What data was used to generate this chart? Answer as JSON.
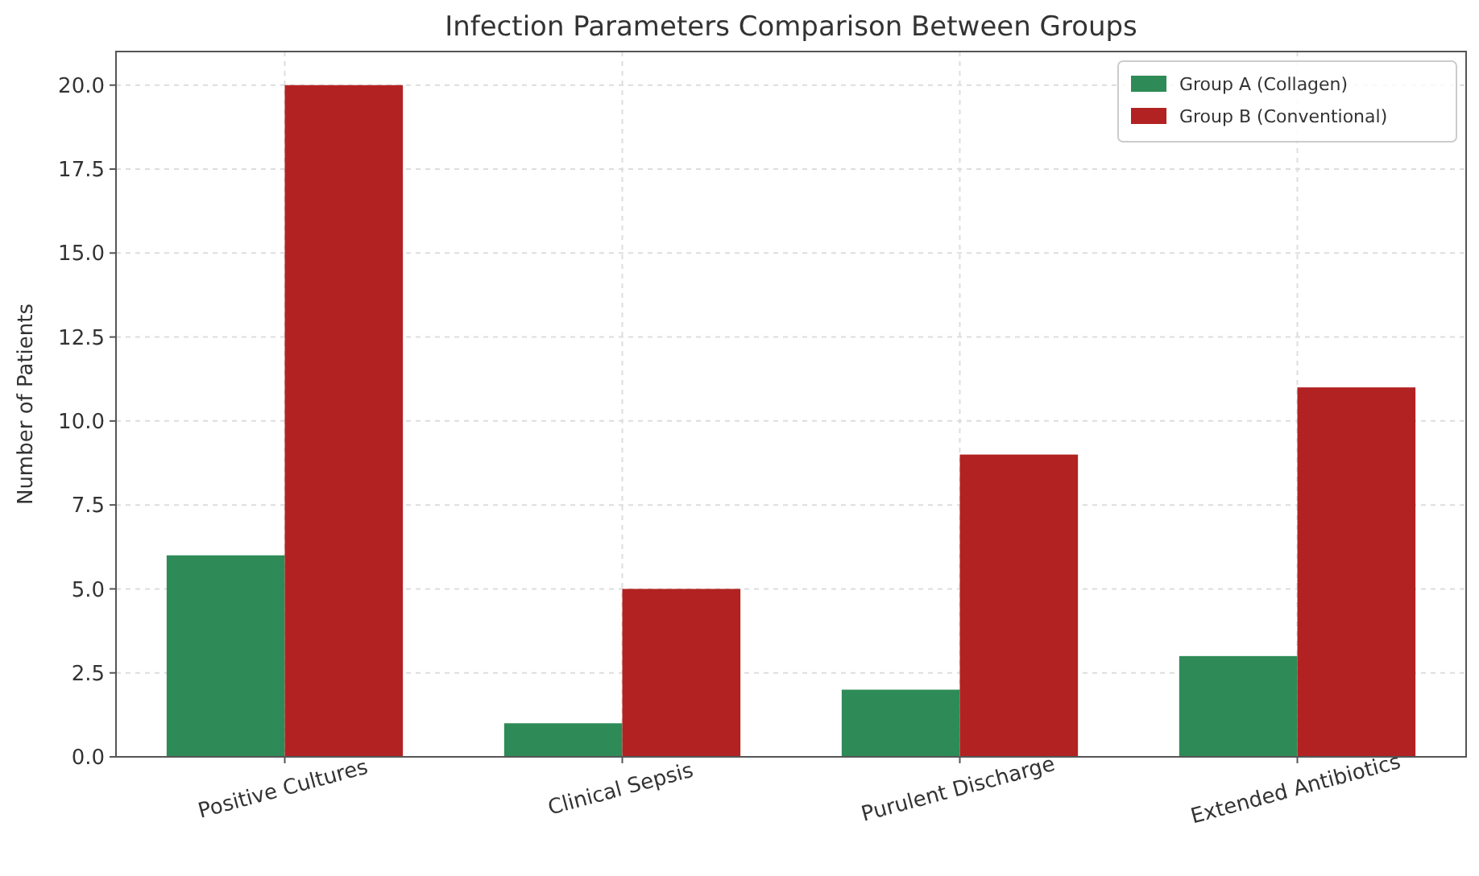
{
  "chart_data": {
    "type": "bar",
    "title": "Infection Parameters Comparison Between Groups",
    "ylabel": "Number of Patients",
    "categories": [
      "Positive Cultures",
      "Clinical Sepsis",
      "Purulent Discharge",
      "Extended Antibiotics"
    ],
    "series": [
      {
        "name": "Group A (Collagen)",
        "color": "#2e8b57",
        "values": [
          6,
          1,
          2,
          3
        ]
      },
      {
        "name": "Group B (Conventional)",
        "color": "#b22222",
        "values": [
          20,
          5,
          9,
          11
        ]
      }
    ],
    "ylim": [
      0,
      21
    ],
    "yticks": [
      {
        "value": 0,
        "label": "0.0"
      },
      {
        "value": 2.5,
        "label": "2.5"
      },
      {
        "value": 5,
        "label": "5.0"
      },
      {
        "value": 7.5,
        "label": "7.5"
      },
      {
        "value": 10,
        "label": "10.0"
      },
      {
        "value": 12.5,
        "label": "12.5"
      },
      {
        "value": 15,
        "label": "15.0"
      },
      {
        "value": 17.5,
        "label": "17.5"
      },
      {
        "value": 20,
        "label": "20.0"
      }
    ],
    "grid": true,
    "legend": "top right"
  }
}
